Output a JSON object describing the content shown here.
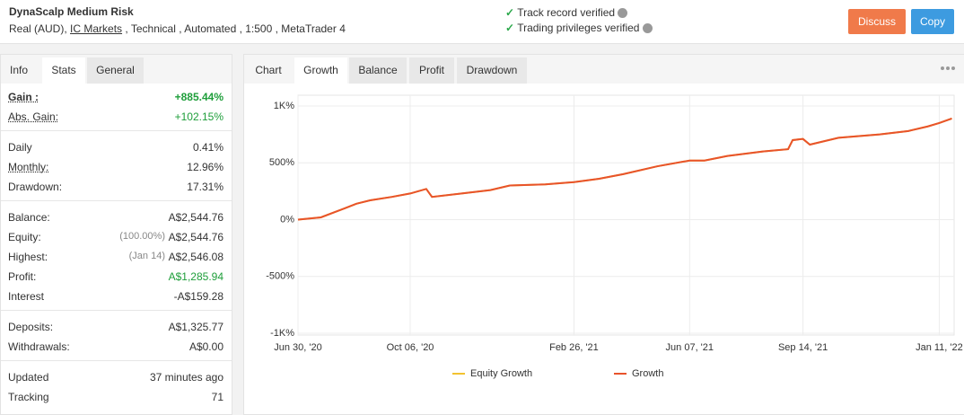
{
  "header": {
    "title": "DynaScalp Medium Risk",
    "account": "Real (AUD),",
    "broker": "IC Markets",
    "details": ", Technical , Automated , 1:500 , MetaTrader 4",
    "verifications": [
      "Track record verified",
      "Trading privileges verified"
    ],
    "buttons": [
      "Discuss",
      "Copy"
    ]
  },
  "left_tabs": [
    "Info",
    "Stats",
    "General"
  ],
  "stats": [
    [
      {
        "label": "Gain :",
        "value": "+885.44%",
        "color": "#1e9e3a"
      },
      {
        "label": "Abs. Gain:",
        "value": "+102.15%",
        "color": "#1e9e3a"
      }
    ],
    [
      {
        "label": "Daily",
        "value": "0.41%"
      },
      {
        "label": "Monthly:",
        "value": "12.96%"
      },
      {
        "label": "Drawdown:",
        "value": "17.31%"
      }
    ],
    [
      {
        "label": "Balance:",
        "value": "A$2,544.76"
      },
      {
        "label": "Equity:",
        "note": "(100.00%)",
        "value": "A$2,544.76"
      },
      {
        "label": "Highest:",
        "note": "(Jan 14)",
        "value": "A$2,546.08"
      },
      {
        "label": "Profit:",
        "value": "A$1,285.94",
        "color": "#1e9e3a"
      },
      {
        "label": "Interest",
        "value": "-A$159.28"
      }
    ],
    [
      {
        "label": "Deposits:",
        "value": "A$1,325.77"
      },
      {
        "label": "Withdrawals:",
        "value": "A$0.00"
      }
    ],
    [
      {
        "label": "Updated",
        "value": "37 minutes ago"
      },
      {
        "label": "Tracking",
        "value": "71"
      }
    ]
  ],
  "chart_tabs": [
    "Chart",
    "Growth",
    "Balance",
    "Profit",
    "Drawdown"
  ],
  "chart_data": {
    "type": "line",
    "x": [
      "2020-06-30",
      "2020-07-20",
      "2020-08-10",
      "2020-08-20",
      "2020-09-01",
      "2020-09-20",
      "2020-10-06",
      "2020-10-20",
      "2020-10-25",
      "2020-11-20",
      "2020-12-15",
      "2021-01-01",
      "2021-02-01",
      "2021-02-26",
      "2021-03-20",
      "2021-04-10",
      "2021-05-10",
      "2021-06-07",
      "2021-06-20",
      "2021-07-10",
      "2021-08-10",
      "2021-09-01",
      "2021-09-05",
      "2021-09-14",
      "2021-09-20",
      "2021-10-15",
      "2021-11-20",
      "2021-12-15",
      "2022-01-01",
      "2022-01-11",
      "2022-01-22"
    ],
    "series": [
      {
        "name": "Equity Growth",
        "color": "#f2c230",
        "values": [
          0,
          20,
          100,
          140,
          170,
          200,
          230,
          270,
          200,
          230,
          260,
          300,
          310,
          330,
          360,
          400,
          470,
          520,
          520,
          560,
          600,
          620,
          700,
          710,
          660,
          720,
          750,
          780,
          820,
          850,
          890
        ]
      },
      {
        "name": "Growth",
        "color": "#e8532b",
        "values": [
          0,
          20,
          100,
          140,
          170,
          200,
          230,
          270,
          200,
          230,
          260,
          300,
          310,
          330,
          360,
          400,
          470,
          520,
          520,
          560,
          600,
          620,
          700,
          710,
          660,
          720,
          750,
          780,
          820,
          850,
          890
        ]
      }
    ],
    "xlim": [
      "2020-06-30",
      "2022-01-24"
    ],
    "xticks": [
      {
        "value": "2020-06-30",
        "label": "Jun 30, '20"
      },
      {
        "value": "2020-10-06",
        "label": "Oct 06, '20"
      },
      {
        "value": "2021-02-26",
        "label": "Feb 26, '21"
      },
      {
        "value": "2021-06-07",
        "label": "Jun 07, '21"
      },
      {
        "value": "2021-09-14",
        "label": "Sep 14, '21"
      },
      {
        "value": "2022-01-11",
        "label": "Jan 11, '22"
      }
    ],
    "ylim": [
      -1000,
      1000
    ],
    "yticks": [
      {
        "value": 1000,
        "label": "1K%"
      },
      {
        "value": 500,
        "label": "500%"
      },
      {
        "value": 0,
        "label": "0%"
      },
      {
        "value": -500,
        "label": "-500%"
      },
      {
        "value": -1000,
        "label": "-1K%"
      }
    ],
    "grid": true
  }
}
